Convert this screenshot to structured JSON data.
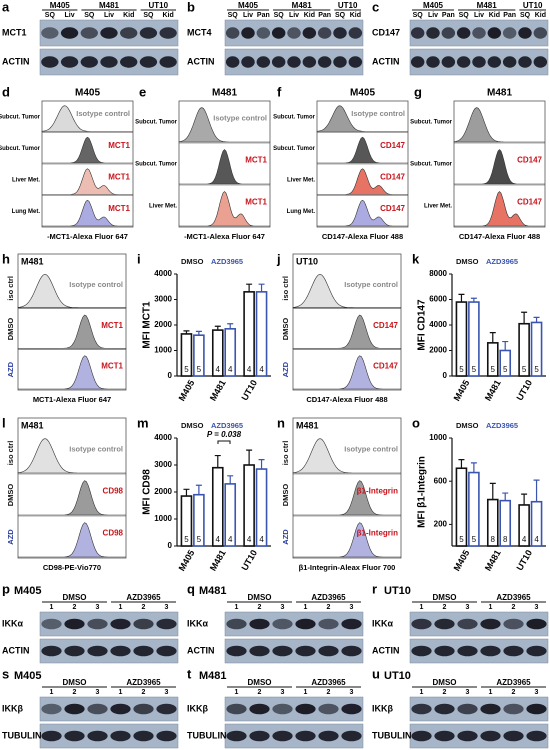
{
  "blots": [
    {
      "panel": "a",
      "groups": [
        {
          "name": "M405",
          "lanes": [
            "SQ",
            "Liv"
          ]
        },
        {
          "name": "M481",
          "lanes": [
            "SQ",
            "Liv",
            "Kid"
          ]
        },
        {
          "name": "UT10",
          "lanes": [
            "SQ",
            "Kid"
          ]
        }
      ],
      "rows": [
        "MCT1",
        "ACTIN"
      ]
    },
    {
      "panel": "b",
      "groups": [
        {
          "name": "M405",
          "lanes": [
            "SQ",
            "Liv",
            "Pan"
          ]
        },
        {
          "name": "M481",
          "lanes": [
            "SQ",
            "Liv",
            "Kid",
            "Pan"
          ]
        },
        {
          "name": "UT10",
          "lanes": [
            "SQ",
            "Kid"
          ]
        }
      ],
      "rows": [
        "MCT4",
        "ACTIN"
      ]
    },
    {
      "panel": "c",
      "groups": [
        {
          "name": "M405",
          "lanes": [
            "SQ",
            "Liv",
            "Pan"
          ]
        },
        {
          "name": "M481",
          "lanes": [
            "SQ",
            "Liv",
            "Kid",
            "Pan"
          ]
        },
        {
          "name": "UT10",
          "lanes": [
            "SQ",
            "Kid"
          ]
        }
      ],
      "rows": [
        "CD147",
        "ACTIN"
      ]
    },
    {
      "panel": "p",
      "title": "M405",
      "groups": [
        {
          "name": "DMSO",
          "lanes": [
            "1",
            "2",
            "3"
          ]
        },
        {
          "name": "AZD3965",
          "lanes": [
            "1",
            "2",
            "3"
          ]
        }
      ],
      "rows": [
        "IKKα",
        "ACTIN"
      ]
    },
    {
      "panel": "q",
      "title": "M481",
      "groups": [
        {
          "name": "DMSO",
          "lanes": [
            "1",
            "2",
            "3"
          ]
        },
        {
          "name": "AZD3965",
          "lanes": [
            "1",
            "2",
            "3"
          ]
        }
      ],
      "rows": [
        "IKKα",
        "ACTIN"
      ]
    },
    {
      "panel": "r",
      "title": "UT10",
      "groups": [
        {
          "name": "DMSO",
          "lanes": [
            "1",
            "2",
            "3"
          ]
        },
        {
          "name": "AZD3965",
          "lanes": [
            "1",
            "2",
            "3"
          ]
        }
      ],
      "rows": [
        "IKKα",
        "ACTIN"
      ]
    },
    {
      "panel": "s",
      "title": "M405",
      "groups": [
        {
          "name": "DMSO",
          "lanes": [
            "1",
            "2",
            "3"
          ]
        },
        {
          "name": "AZD3965",
          "lanes": [
            "1",
            "2",
            "3"
          ]
        }
      ],
      "rows": [
        "IKKβ",
        "TUBULIN"
      ]
    },
    {
      "panel": "t",
      "title": "M481",
      "groups": [
        {
          "name": "DMSO",
          "lanes": [
            "1",
            "2",
            "3"
          ]
        },
        {
          "name": "AZD3965",
          "lanes": [
            "1",
            "2",
            "3"
          ]
        }
      ],
      "rows": [
        "IKKβ",
        "TUBULIN"
      ]
    },
    {
      "panel": "u",
      "title": "UT10",
      "groups": [
        {
          "name": "DMSO",
          "lanes": [
            "1",
            "2",
            "3"
          ]
        },
        {
          "name": "AZD3965",
          "lanes": [
            "1",
            "2",
            "3"
          ]
        }
      ],
      "rows": [
        "IKKβ",
        "TUBULIN"
      ]
    }
  ],
  "histograms": [
    {
      "panel": "d",
      "title": "M405",
      "xlabel": "-MCT1-Alexa Fluor 647",
      "rows": [
        {
          "label": "Subcut. Tumor",
          "marker": "Isotype control",
          "color": "#d4d4d4"
        },
        {
          "label": "Subcut. Tumor",
          "marker": "MCT1",
          "color": "#4a4a4a"
        },
        {
          "label": "Liver Met.",
          "marker": "MCT1",
          "color": "#eab0a4"
        },
        {
          "label": "Lung Met.",
          "marker": "MCT1",
          "color": "#9c9cdc"
        }
      ]
    },
    {
      "panel": "e",
      "title": "M481",
      "xlabel": "-MCT1-Alexa Fluor 647",
      "rows": [
        {
          "label": "Subcut. Tumor",
          "marker": "Isotype control",
          "color": "#9a9a9a"
        },
        {
          "label": "Subcut. Tumor",
          "marker": "MCT1",
          "color": "#3a3a3a"
        },
        {
          "label": "Liver Met.",
          "marker": "MCT1",
          "color": "#e8907e"
        }
      ]
    },
    {
      "panel": "f",
      "title": "M405",
      "xlabel": "CD147-Alexa Fluor 488",
      "rows": [
        {
          "label": "Subcut. Tumor",
          "marker": "Isotype control",
          "color": "#8c8c8c"
        },
        {
          "label": "Subcut. Tumor",
          "marker": "CD147",
          "color": "#3a3a3a"
        },
        {
          "label": "Liver Met.",
          "marker": "CD147",
          "color": "#e25a48"
        },
        {
          "label": "Lung Met.",
          "marker": "CD147",
          "color": "#9c9cdc"
        }
      ]
    },
    {
      "panel": "g",
      "title": "M481",
      "xlabel": "CD147-Alexa Fluor 488",
      "rows": [
        {
          "label": "Subcut. Tumor",
          "color": "#8c8c8c"
        },
        {
          "label": "Subcut. Tumor",
          "marker": "CD147",
          "color": "#2a2a2a"
        },
        {
          "label": "Liver Met.",
          "marker": "CD147",
          "color": "#e25a48"
        }
      ]
    },
    {
      "panel": "h",
      "title": "M481",
      "xlabel": "MCT1-Alexa Fluor 647",
      "rows": [
        {
          "label": "iso ctrl",
          "marker": "Isotype control",
          "color": "#dcdcdc"
        },
        {
          "label": "DMSO",
          "marker": "MCT1",
          "color": "#8a8a8a"
        },
        {
          "label": "AZD",
          "marker": "MCT1",
          "color": "#a4a4dc"
        }
      ]
    },
    {
      "panel": "j",
      "title": "UT10",
      "xlabel": "CD147-Alexa Fluor 488",
      "rows": [
        {
          "label": "iso ctrl",
          "marker": "Isotype control",
          "color": "#dcdcdc"
        },
        {
          "label": "DMSO",
          "marker": "CD147",
          "color": "#8a8a8a"
        },
        {
          "label": "AZD",
          "marker": "CD147",
          "color": "#a4a4dc"
        }
      ]
    },
    {
      "panel": "l",
      "title": "M481",
      "xlabel": "CD98-PE-Vio770",
      "rows": [
        {
          "label": "iso ctrl",
          "marker": "Isotype control",
          "color": "#dcdcdc"
        },
        {
          "label": "DMSO",
          "marker": "CD98",
          "color": "#8a8a8a"
        },
        {
          "label": "AZD",
          "marker": "CD98",
          "color": "#a4a4dc"
        }
      ]
    },
    {
      "panel": "n",
      "title": "M481",
      "xlabel": "β1-Integrin-Aleax Fluor 700",
      "rows": [
        {
          "label": "iso ctrl",
          "marker": "Isotype control",
          "color": "#dcdcdc"
        },
        {
          "label": "DMSO",
          "marker": "β1-Integrin",
          "color": "#8a8a8a"
        },
        {
          "label": "AZD",
          "marker": "β1-Integrin",
          "color": "#a4a4dc"
        }
      ]
    }
  ],
  "chart_data": [
    {
      "type": "bar",
      "panel": "i",
      "ylabel": "MFI MCT1",
      "categories": [
        "M405",
        "M481",
        "UT10"
      ],
      "ylim": [
        0,
        4000
      ],
      "yticks": [
        0,
        1000,
        2000,
        3000,
        4000
      ],
      "series": [
        {
          "name": "DMSO",
          "color": "#111111",
          "values": [
            1650,
            1800,
            3300
          ],
          "errors": [
            120,
            150,
            300
          ],
          "n": [
            5,
            4,
            4
          ]
        },
        {
          "name": "AZD3965",
          "color": "#3a55b0",
          "values": [
            1600,
            1850,
            3300
          ],
          "errors": [
            150,
            200,
            300
          ],
          "n": [
            5,
            4,
            4
          ]
        }
      ]
    },
    {
      "type": "bar",
      "panel": "k",
      "ylabel": "MFI CD147",
      "categories": [
        "M405",
        "M481",
        "UT10"
      ],
      "ylim": [
        0,
        8000
      ],
      "yticks": [
        0,
        2000,
        4000,
        6000,
        8000
      ],
      "series": [
        {
          "name": "DMSO",
          "color": "#111111",
          "values": [
            5800,
            2600,
            4100
          ],
          "errors": [
            600,
            800,
            900
          ],
          "n": [
            5,
            5,
            5
          ]
        },
        {
          "name": "AZD3965",
          "color": "#3a55b0",
          "values": [
            5800,
            2000,
            4200
          ],
          "errors": [
            300,
            700,
            400
          ],
          "n": [
            5,
            5,
            5
          ]
        }
      ]
    },
    {
      "type": "bar",
      "panel": "m",
      "ylabel": "MFI CD98",
      "annotation": "P = 0.038",
      "categories": [
        "M405",
        "M481",
        "UT10"
      ],
      "ylim": [
        0,
        4000
      ],
      "yticks": [
        0,
        1000,
        2000,
        3000,
        4000
      ],
      "series": [
        {
          "name": "DMSO",
          "color": "#111111",
          "values": [
            1850,
            2900,
            3000
          ],
          "errors": [
            250,
            450,
            550
          ],
          "n": [
            5,
            4,
            4
          ]
        },
        {
          "name": "AZD3965",
          "color": "#3a55b0",
          "values": [
            1900,
            2300,
            2850
          ],
          "errors": [
            350,
            300,
            350
          ],
          "n": [
            5,
            4,
            4
          ]
        }
      ]
    },
    {
      "type": "bar",
      "panel": "o",
      "ylabel": "MFI β1-Integrin",
      "categories": [
        "M405",
        "M481",
        "UT10"
      ],
      "ylim": [
        0,
        1000
      ],
      "yticks": [
        200,
        600,
        1000
      ],
      "series": [
        {
          "name": "DMSO",
          "color": "#111111",
          "values": [
            720,
            430,
            380
          ],
          "errors": [
            80,
            150,
            100
          ],
          "n": [
            5,
            8,
            4
          ]
        },
        {
          "name": "AZD3965",
          "color": "#3a55b0",
          "values": [
            680,
            420,
            410
          ],
          "errors": [
            90,
            70,
            200
          ],
          "n": [
            5,
            8,
            4
          ]
        }
      ]
    }
  ]
}
